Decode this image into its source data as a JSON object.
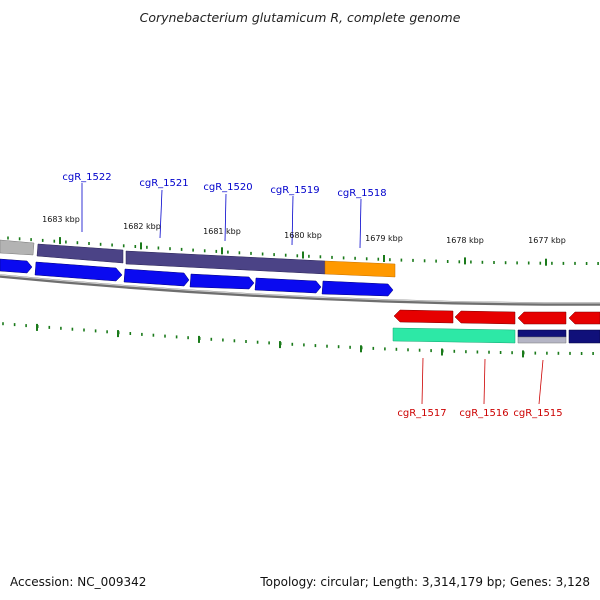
{
  "title": "Corynebacterium glutamicum R, complete genome",
  "footer": {
    "accession": "Accession: NC_009342",
    "topology": "Topology: circular; Length: 3,314,179 bp; Genes: 3,128"
  },
  "colors": {
    "forward_cds": "#0a0af0",
    "reverse_cds": "#e60000",
    "forward_label": "#0000cc",
    "reverse_label": "#cc0000",
    "cog_purple": "#4b4386",
    "cog_orange": "#ff9900",
    "cog_green": "#2de8a6",
    "cog_navy": "#10107a",
    "cog_gray": "#b0b0b0",
    "ticks": "#1a7a1a",
    "backbone": "#808080"
  },
  "ticks": [
    "1683 kbp",
    "1682 kbp",
    "1681 kbp",
    "1680 kbp",
    "1679 kbp",
    "1678 kbp",
    "1677 kbp"
  ],
  "forward_genes": [
    "cgR_1522",
    "cgR_1521",
    "cgR_1520",
    "cgR_1519",
    "cgR_1518"
  ],
  "reverse_genes": [
    "cgR_1517",
    "cgR_1516",
    "cgR_1515"
  ]
}
